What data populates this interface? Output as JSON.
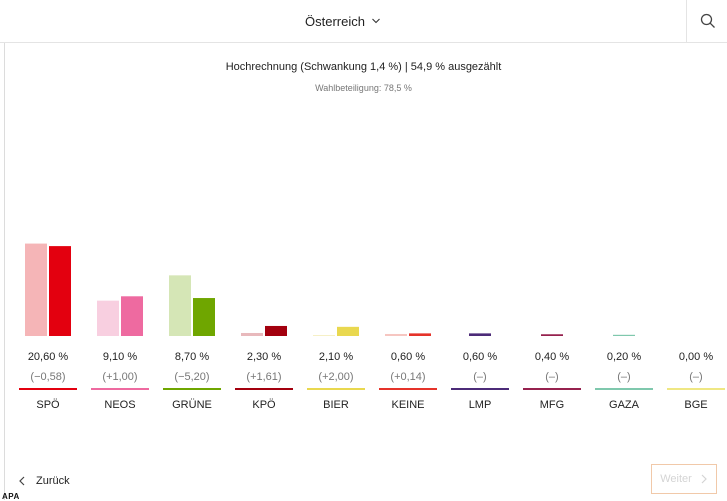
{
  "header": {
    "region_label": "Österreich",
    "chevron_icon": "chevron-down-icon",
    "search_icon": "search-icon"
  },
  "chart_data": {
    "type": "bar",
    "title": "Hochrechnung (Schwankung 1,4 %) | 54,9 % ausgezählt",
    "subtitle": "Wahlbeteiligung: 78,5 %",
    "categories": [
      "SPÖ",
      "NEOS",
      "GRÜNE",
      "KPÖ",
      "BIER",
      "KEINE",
      "LMP",
      "MFG",
      "GAZA",
      "BGE"
    ],
    "series": [
      {
        "values": [
          21.18,
          8.1,
          13.9,
          0.69,
          0.1,
          0.46,
          null,
          null,
          null,
          null
        ]
      },
      {
        "values": [
          20.6,
          9.1,
          8.7,
          2.3,
          2.1,
          0.6,
          0.6,
          0.4,
          0.2,
          0.0
        ]
      }
    ],
    "value_labels": [
      "20,60 %",
      "9,10 %",
      "8,70 %",
      "2,30 %",
      "2,10 %",
      "0,60 %",
      "0,60 %",
      "0,40 %",
      "0,20 %",
      "0,00 %"
    ],
    "change_labels": [
      "(−0,58)",
      "(+1,00)",
      "(−5,20)",
      "(+1,61)",
      "(+2,00)",
      "(+0,14)",
      "(–)",
      "(–)",
      "(–)",
      "(–)"
    ],
    "colors": [
      "#e3000f",
      "#ee6aa0",
      "#6fa600",
      "#a3000e",
      "#e9d84f",
      "#e5332a",
      "#4c2b78",
      "#96214e",
      "#7fc8ad",
      "#efe783"
    ],
    "prev_colors": [
      "#f5b5b7",
      "#f8cfe0",
      "#d5e6b6",
      "#e8b9bc",
      "#f6f0c6",
      "#f6c6c1",
      null,
      null,
      null,
      null
    ],
    "ylim": [
      0,
      22
    ],
    "grid": false,
    "legend": "none"
  },
  "footer": {
    "back_label": "Zurück",
    "next_label": "Weiter",
    "logo_text": "APA"
  }
}
